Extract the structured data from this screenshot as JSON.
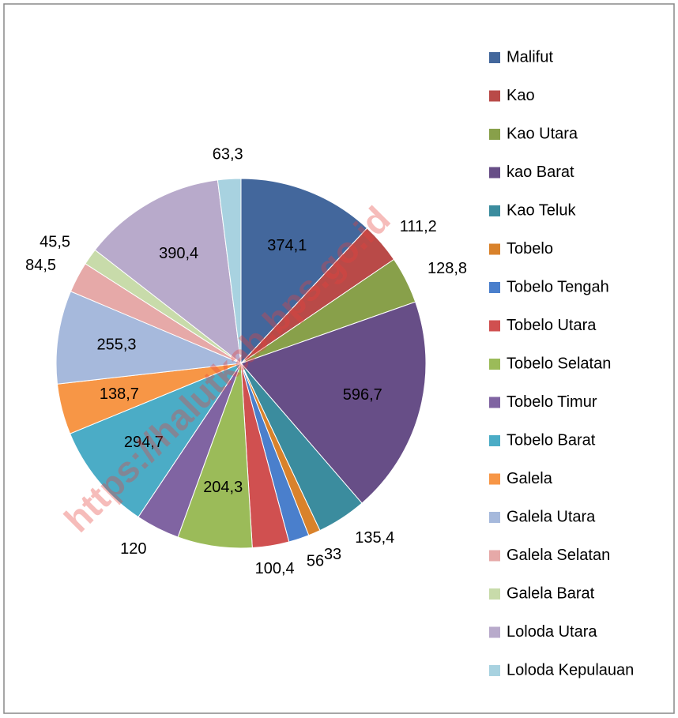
{
  "chart_data": {
    "type": "pie",
    "categories": [
      "Malifut",
      "Kao",
      "Kao Utara",
      "kao Barat",
      "Kao Teluk",
      "Tobelo",
      "Tobelo Tengah",
      "Tobelo Utara",
      "Tobelo Selatan",
      "Tobelo Timur",
      "Tobelo Barat",
      "Galela",
      "Galela Utara",
      "Galela Selatan",
      "Galela Barat",
      "Loloda Utara",
      "Loloda Kepulauan"
    ],
    "values": [
      374.1,
      111.2,
      128.8,
      596.7,
      135.4,
      33,
      56,
      100.4,
      204.3,
      120,
      294.7,
      138.7,
      255.3,
      84.5,
      45.5,
      390.4,
      63.3
    ],
    "value_labels": [
      "374,1",
      "111,2",
      "128,8",
      "596,7",
      "135,4",
      "33",
      "56",
      "100,4",
      "204,3",
      "120",
      "294,7",
      "138,7",
      "255,3",
      "84,5",
      "45,5",
      "390,4",
      "63,3"
    ],
    "colors": [
      "#43679c",
      "#b94a48",
      "#88a04a",
      "#674e87",
      "#3b8c9e",
      "#d9822b",
      "#4a7fcc",
      "#d05050",
      "#9bbb59",
      "#8064a2",
      "#4bacc6",
      "#f79646",
      "#a6b9dc",
      "#e6a9a8",
      "#c8dbaa",
      "#b8aacb",
      "#a8d2e0"
    ],
    "legend": "right",
    "watermark": "https://halutkab.bps.go.id"
  }
}
